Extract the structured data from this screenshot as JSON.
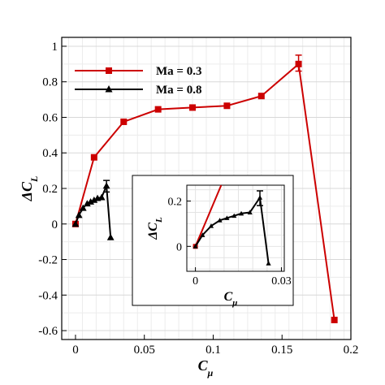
{
  "chart_data": {
    "type": "line",
    "xlabel": "C",
    "xlabel_sub": "μ",
    "ylabel": "ΔC",
    "ylabel_sub": "L",
    "xlim": [
      -0.01,
      0.2
    ],
    "ylim": [
      -0.65,
      1.05
    ],
    "xticks": [
      "0",
      "0.05",
      "0.1",
      "0.15",
      "0.2"
    ],
    "yticks": [
      "-0.6",
      "-0.4",
      "-0.2",
      "0",
      "0.2",
      "0.4",
      "0.6",
      "0.8",
      "1"
    ],
    "grid": true,
    "legend_position": "top-left",
    "series": [
      {
        "name": "Ma = 0.3",
        "color": "#cc0000",
        "marker": "square",
        "x": [
          0,
          0.0135,
          0.035,
          0.06,
          0.085,
          0.11,
          0.135,
          0.162,
          0.188
        ],
        "y": [
          0,
          0.375,
          0.575,
          0.645,
          0.655,
          0.665,
          0.72,
          0.9,
          -0.54
        ],
        "error_bars": [
          {
            "x": 0.162,
            "low": 0.86,
            "high": 0.95
          }
        ]
      },
      {
        "name": "Ma = 0.8",
        "color": "#000000",
        "marker": "triangle",
        "x": [
          0,
          0.0025,
          0.0055,
          0.0085,
          0.011,
          0.0135,
          0.016,
          0.019,
          0.0225,
          0.0255
        ],
        "y": [
          0,
          0.05,
          0.09,
          0.115,
          0.125,
          0.135,
          0.145,
          0.15,
          0.215,
          -0.075
        ],
        "error_bars": [
          {
            "x": 0.0225,
            "low": 0.18,
            "high": 0.245
          }
        ]
      }
    ],
    "inset": {
      "xlim": [
        -0.003,
        0.031
      ],
      "ylim": [
        -0.11,
        0.27
      ],
      "xticks": [
        "0",
        "0.03"
      ],
      "yticks": [
        "0",
        "0.2"
      ],
      "xlabel": "C",
      "xlabel_sub": "μ",
      "ylabel": "ΔC",
      "ylabel_sub": "L",
      "red_line": {
        "x": [
          0,
          0.009
        ],
        "y": [
          0,
          0.27
        ]
      }
    }
  }
}
